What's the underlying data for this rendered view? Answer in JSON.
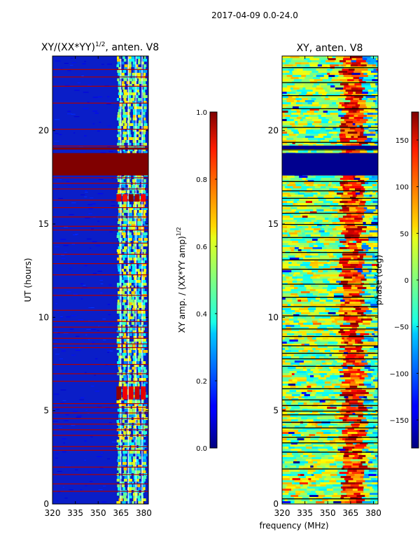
{
  "figure": {
    "suptitle": "2017-04-09 0.0-24.0",
    "xlabel": "frequency (MHz)"
  },
  "colors": {
    "background": "#ffffff",
    "saturated": "#800000",
    "navy": "#00008f"
  },
  "chart_data": [
    {
      "type": "heatmap",
      "title": "XY/(XX*YY)",
      "title_sup": "1/2",
      "title_rest": ", anten. V8",
      "ylabel": "UT (hours)",
      "xlim": [
        320,
        383
      ],
      "ylim": [
        0,
        24
      ],
      "xticks": [
        320,
        335,
        350,
        365,
        380
      ],
      "yticks": [
        0,
        5,
        10,
        15,
        20
      ],
      "colorbar": {
        "label": "XY amp. / (XX*YY amp)",
        "label_sup": "1/2",
        "range": [
          0.0,
          1.0
        ],
        "ticks": [
          "0.0",
          "0.2",
          "0.4",
          "0.6",
          "0.8",
          "1.0"
        ],
        "colormap": "jet"
      },
      "saturated_band_hours": [
        17.6,
        18.8
      ],
      "notable_bands_hours": [
        16.2,
        16.6,
        5.6,
        6.3
      ]
    },
    {
      "type": "heatmap",
      "title": "XY, anten. V8",
      "ylabel": "",
      "xlim": [
        320,
        383
      ],
      "ylim": [
        0,
        24
      ],
      "xticks": [
        320,
        335,
        350,
        365,
        380
      ],
      "yticks": [
        0,
        5,
        10,
        15,
        20
      ],
      "colorbar": {
        "label": "phase (deg)",
        "range": [
          -180,
          180
        ],
        "ticks": [
          "-150",
          "-100",
          "-50",
          "0",
          "50",
          "100",
          "150"
        ],
        "colormap": "jet"
      },
      "flat_band_hours": [
        17.6,
        18.8
      ]
    }
  ]
}
